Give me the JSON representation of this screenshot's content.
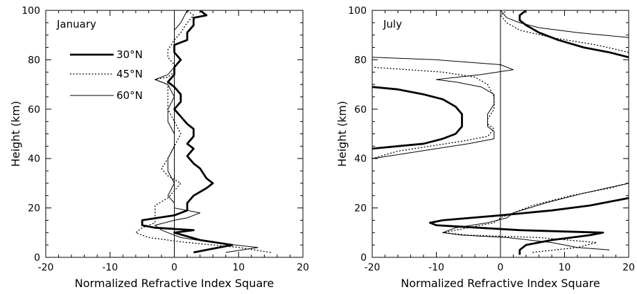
{
  "chart_data": [
    {
      "type": "line",
      "title": "",
      "panel_label": "January",
      "xlabel": "Normalized Refractive Index Square",
      "ylabel": "Height (km)",
      "xlim": [
        -20,
        20
      ],
      "ylim": [
        0,
        100
      ],
      "xticks": [
        "-20",
        "-10",
        "0",
        "10",
        "20"
      ],
      "yticks": [
        "0",
        "20",
        "40",
        "60",
        "80",
        "100"
      ],
      "legend_position": "upper-left",
      "series": [
        {
          "name": "30°N",
          "style": "thick",
          "points": [
            [
              3,
              2
            ],
            [
              5,
              3
            ],
            [
              9,
              5
            ],
            [
              4,
              7
            ],
            [
              0,
              10
            ],
            [
              3,
              11
            ],
            [
              -3,
              12
            ],
            [
              -5,
              13
            ],
            [
              -5,
              15
            ],
            [
              0,
              17
            ],
            [
              2,
              19
            ],
            [
              2,
              22
            ],
            [
              3,
              25
            ],
            [
              5,
              28
            ],
            [
              6,
              30
            ],
            [
              5,
              32
            ],
            [
              4,
              36
            ],
            [
              3,
              38
            ],
            [
              2,
              41
            ],
            [
              3,
              44
            ],
            [
              2,
              46
            ],
            [
              3,
              49
            ],
            [
              3,
              52
            ],
            [
              2,
              54
            ],
            [
              1,
              57
            ],
            [
              0,
              60
            ],
            [
              1,
              63
            ],
            [
              1,
              66
            ],
            [
              0,
              69
            ],
            [
              -1,
              71
            ],
            [
              0,
              74
            ],
            [
              0,
              77
            ],
            [
              1,
              80
            ],
            [
              0,
              83
            ],
            [
              0,
              86
            ],
            [
              2,
              88
            ],
            [
              2,
              91
            ],
            [
              3,
              94
            ],
            [
              3,
              97
            ],
            [
              5,
              98
            ],
            [
              4,
              100
            ]
          ]
        },
        {
          "name": "45°N",
          "style": "dotted",
          "points": [
            [
              15,
              2
            ],
            [
              10,
              4
            ],
            [
              2,
              6
            ],
            [
              -4,
              8
            ],
            [
              -6,
              10
            ],
            [
              -5,
              12
            ],
            [
              -3,
              14
            ],
            [
              -3,
              16
            ],
            [
              -3,
              18
            ],
            [
              -3,
              21
            ],
            [
              -1,
              24
            ],
            [
              0,
              27
            ],
            [
              1,
              30
            ],
            [
              -1,
              33
            ],
            [
              -2,
              36
            ],
            [
              -1,
              40
            ],
            [
              0,
              45
            ],
            [
              1,
              50
            ],
            [
              0,
              55
            ],
            [
              -1,
              60
            ],
            [
              -1,
              65
            ],
            [
              -1,
              70
            ],
            [
              -3,
              72
            ],
            [
              -1,
              73
            ],
            [
              0,
              75
            ],
            [
              0,
              78
            ],
            [
              -1,
              81
            ],
            [
              -1,
              84
            ],
            [
              0,
              88
            ],
            [
              1,
              91
            ],
            [
              2,
              95
            ],
            [
              3,
              98
            ],
            [
              2,
              100
            ]
          ]
        },
        {
          "name": "60°N",
          "style": "thin",
          "points": [
            [
              8,
              2
            ],
            [
              13,
              4
            ],
            [
              6,
              6
            ],
            [
              1,
              8
            ],
            [
              -1,
              10
            ],
            [
              -2,
              11
            ],
            [
              -3,
              13
            ],
            [
              0,
              15
            ],
            [
              2,
              16
            ],
            [
              3,
              17
            ],
            [
              4,
              18
            ],
            [
              0,
              20
            ],
            [
              0,
              22
            ],
            [
              -1,
              25
            ],
            [
              0,
              30
            ],
            [
              -1,
              35
            ],
            [
              -1,
              40
            ],
            [
              0,
              45
            ],
            [
              0,
              50
            ],
            [
              -1,
              55
            ],
            [
              -1,
              60
            ],
            [
              0,
              65
            ],
            [
              -1,
              70
            ],
            [
              -3,
              72
            ],
            [
              -1,
              74
            ],
            [
              0,
              77
            ],
            [
              0,
              82
            ],
            [
              0,
              87
            ],
            [
              0,
              92
            ],
            [
              1,
              95
            ],
            [
              2,
              100
            ]
          ]
        }
      ]
    },
    {
      "type": "line",
      "title": "",
      "panel_label": "July",
      "xlabel": "Normalized Refractive Index Square",
      "ylabel": "Height (km)",
      "xlim": [
        -20,
        20
      ],
      "ylim": [
        0,
        100
      ],
      "xticks": [
        "-20",
        "-10",
        "0",
        "10",
        "20"
      ],
      "yticks": [
        "0",
        "20",
        "40",
        "60",
        "80",
        "100"
      ],
      "series": [
        {
          "name": "30°N",
          "style": "thick",
          "points": [
            [
              3,
              1
            ],
            [
              3,
              3
            ],
            [
              4,
              5
            ],
            [
              8,
              7
            ],
            [
              14,
              9
            ],
            [
              16,
              10
            ],
            [
              3,
              11
            ],
            [
              -10,
              13
            ],
            [
              -11,
              14
            ],
            [
              -9,
              15
            ],
            [
              0,
              17
            ],
            [
              8,
              19
            ],
            [
              14,
              21
            ],
            [
              20,
              24
            ]
          ]
        },
        {
          "name": "30°N",
          "style": "thick",
          "points": [
            [
              -20,
              44
            ],
            [
              -16,
              45
            ],
            [
              -12,
              46
            ],
            [
              -9,
              48
            ],
            [
              -7,
              50
            ],
            [
              -6,
              53
            ],
            [
              -6,
              56
            ],
            [
              -6,
              58
            ],
            [
              -7,
              61
            ],
            [
              -9,
              64
            ],
            [
              -12,
              66
            ],
            [
              -16,
              68
            ],
            [
              -20,
              69
            ]
          ]
        },
        {
          "name": "30°N",
          "style": "thick",
          "points": [
            [
              20,
              81
            ],
            [
              17,
              83
            ],
            [
              13,
              85
            ],
            [
              9,
              88
            ],
            [
              6,
              91
            ],
            [
              4,
              94
            ],
            [
              3,
              96
            ],
            [
              3,
              98
            ],
            [
              4,
              100
            ]
          ]
        },
        {
          "name": "45°N",
          "style": "dotted",
          "points": [
            [
              5,
              2
            ],
            [
              12,
              4
            ],
            [
              15,
              6
            ],
            [
              6,
              8
            ],
            [
              -5,
              9
            ],
            [
              -9,
              10
            ],
            [
              -5,
              12
            ],
            [
              -1,
              14
            ],
            [
              0,
              16
            ],
            [
              2,
              18
            ],
            [
              5,
              21
            ],
            [
              11,
              25
            ],
            [
              17,
              28
            ],
            [
              20,
              30
            ]
          ]
        },
        {
          "name": "45°N",
          "style": "dotted",
          "points": [
            [
              -20,
              40
            ],
            [
              -16,
              43
            ],
            [
              -11,
              45
            ],
            [
              -6,
              47
            ],
            [
              -2,
              49
            ],
            [
              -1,
              52
            ],
            [
              -2,
              54
            ],
            [
              -2,
              56
            ],
            [
              -1,
              60
            ],
            [
              -1,
              65
            ],
            [
              -2,
              70
            ],
            [
              -4,
              73
            ],
            [
              -9,
              75
            ],
            [
              -20,
              77
            ]
          ]
        },
        {
          "name": "45°N",
          "style": "dotted",
          "points": [
            [
              20,
              83
            ],
            [
              15,
              86
            ],
            [
              8,
              89
            ],
            [
              3,
              92
            ],
            [
              1,
              95
            ],
            [
              0,
              98
            ],
            [
              1,
              100
            ]
          ]
        },
        {
          "name": "60°N",
          "style": "thin",
          "points": [
            [
              17,
              3
            ],
            [
              12,
              4
            ],
            [
              8,
              6
            ],
            [
              1,
              8
            ],
            [
              -6,
              9
            ],
            [
              -9,
              10
            ],
            [
              -7,
              12
            ],
            [
              -2,
              14
            ],
            [
              1,
              16
            ],
            [
              2,
              18
            ],
            [
              7,
              22
            ],
            [
              13,
              26
            ],
            [
              20,
              30
            ]
          ]
        },
        {
          "name": "60°N",
          "style": "thin",
          "points": [
            [
              -20,
              40
            ],
            [
              -15,
              42
            ],
            [
              -10,
              44
            ],
            [
              -5,
              46
            ],
            [
              -1,
              48
            ],
            [
              -1,
              51
            ],
            [
              -2,
              53
            ],
            [
              -2,
              56
            ],
            [
              -2,
              58
            ],
            [
              -1,
              62
            ],
            [
              -1,
              66
            ],
            [
              -3,
              69
            ],
            [
              -7,
              71
            ],
            [
              -10,
              72
            ],
            [
              -3,
              74
            ],
            [
              2,
              76
            ],
            [
              0,
              78
            ],
            [
              -10,
              80
            ],
            [
              -20,
              81
            ]
          ]
        },
        {
          "name": "60°N",
          "style": "thin",
          "points": [
            [
              20,
              89
            ],
            [
              12,
              91
            ],
            [
              6,
              93
            ],
            [
              3,
              95
            ],
            [
              1,
              97
            ],
            [
              0,
              100
            ]
          ]
        }
      ]
    }
  ]
}
